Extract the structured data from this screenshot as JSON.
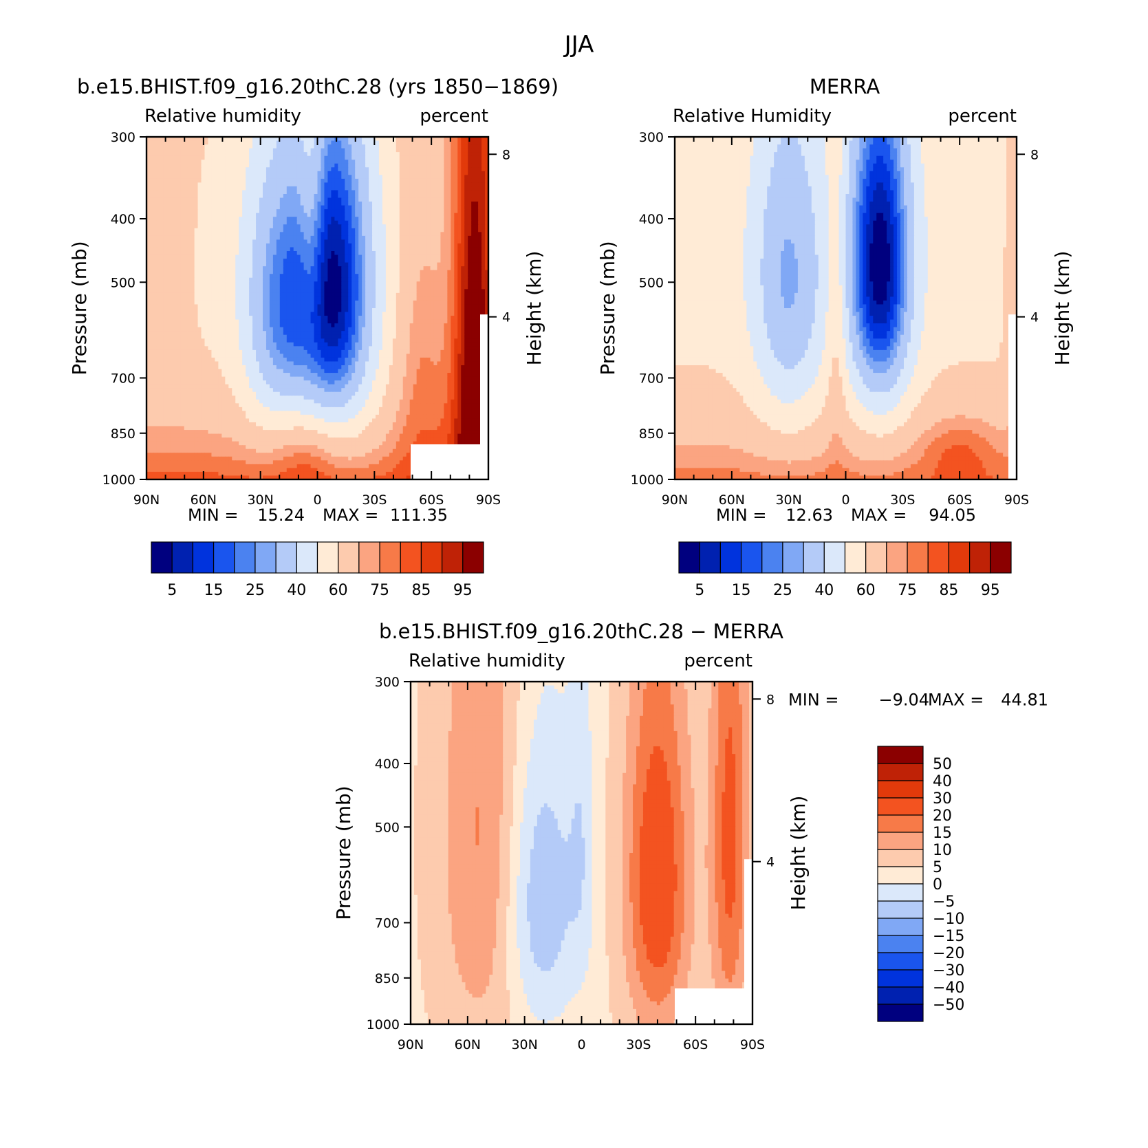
{
  "figure": {
    "title": "JJA"
  },
  "chart_data": [
    {
      "id": "model",
      "type": "heatmap",
      "title": "b.e15.BHIST.f09_g16.20thC.28 (yrs 1850−1869)",
      "left_label": "Relative humidity",
      "right_label": "percent",
      "ylabel": "Pressure (mb)",
      "y2label": "Height (km)",
      "x_ticks": [
        "90N",
        "60N",
        "30N",
        "0",
        "30S",
        "60S",
        "90S"
      ],
      "x_values": [
        90,
        60,
        30,
        0,
        -30,
        -60,
        -90
      ],
      "y_ticks": [
        "300",
        "400",
        "500",
        "700",
        "850",
        "1000"
      ],
      "y_values": [
        300,
        400,
        500,
        700,
        850,
        1000
      ],
      "y2_ticks": [
        "8",
        "4"
      ],
      "y2_values": [
        8,
        4
      ],
      "ylim": [
        300,
        1000
      ],
      "xlim": [
        90,
        -90
      ],
      "min_label": "MIN =",
      "min_value": "15.24",
      "max_label": "MAX =",
      "max_value": "111.35",
      "levels": [
        "5",
        "15",
        "25",
        "40",
        "60",
        "75",
        "85",
        "95"
      ],
      "colors": [
        "#00007f",
        "#0021b0",
        "#0033dd",
        "#1a55ee",
        "#4b82f0",
        "#80a8f5",
        "#b4cbf8",
        "#dbe8fa",
        "#ffebd6",
        "#fdcbae",
        "#fba481",
        "#f77a48",
        "#f35320",
        "#e23a0b",
        "#bf2206",
        "#8b0000"
      ],
      "source": "model"
    },
    {
      "id": "obs",
      "type": "heatmap",
      "title": "MERRA",
      "left_label": "Relative Humidity",
      "right_label": "percent",
      "ylabel": "Pressure (mb)",
      "y2label": "Height (km)",
      "x_ticks": [
        "90N",
        "60N",
        "30N",
        "0",
        "30S",
        "60S",
        "90S"
      ],
      "x_values": [
        90,
        60,
        30,
        0,
        -30,
        -60,
        -90
      ],
      "y_ticks": [
        "300",
        "400",
        "500",
        "700",
        "850",
        "1000"
      ],
      "y_values": [
        300,
        400,
        500,
        700,
        850,
        1000
      ],
      "y2_ticks": [
        "8",
        "4"
      ],
      "y2_values": [
        8,
        4
      ],
      "ylim": [
        300,
        1000
      ],
      "xlim": [
        90,
        -90
      ],
      "min_label": "MIN =",
      "min_value": "12.63",
      "max_label": "MAX =",
      "max_value": "94.05",
      "levels": [
        "5",
        "15",
        "25",
        "40",
        "60",
        "75",
        "85",
        "95"
      ],
      "colors": [
        "#00007f",
        "#0021b0",
        "#0033dd",
        "#1a55ee",
        "#4b82f0",
        "#80a8f5",
        "#b4cbf8",
        "#dbe8fa",
        "#ffebd6",
        "#fdcbae",
        "#fba481",
        "#f77a48",
        "#f35320",
        "#e23a0b",
        "#bf2206",
        "#8b0000"
      ],
      "source": "obs"
    },
    {
      "id": "diff",
      "type": "heatmap",
      "title": "b.e15.BHIST.f09_g16.20thC.28 − MERRA",
      "left_label": "Relative humidity",
      "right_label": "percent",
      "ylabel": "Pressure (mb)",
      "y2label": "Height (km)",
      "x_ticks": [
        "90N",
        "60N",
        "30N",
        "0",
        "30S",
        "60S",
        "90S"
      ],
      "x_values": [
        90,
        60,
        30,
        0,
        -30,
        -60,
        -90
      ],
      "y_ticks": [
        "300",
        "400",
        "500",
        "700",
        "850",
        "1000"
      ],
      "y_values": [
        300,
        400,
        500,
        700,
        850,
        1000
      ],
      "y2_ticks": [
        "8",
        "4"
      ],
      "y2_values": [
        8,
        4
      ],
      "ylim": [
        300,
        1000
      ],
      "xlim": [
        90,
        -90
      ],
      "min_label": "MIN =",
      "min_value": "−9.04",
      "max_label": "MAX =",
      "max_value": "44.81",
      "levels": [
        "50",
        "40",
        "30",
        "20",
        "15",
        "10",
        "5",
        "0",
        "−5",
        "−10",
        "−15",
        "−20",
        "−30",
        "−40",
        "−50"
      ],
      "colors": [
        "#00007f",
        "#0021b0",
        "#0033dd",
        "#1a55ee",
        "#4b82f0",
        "#80a8f5",
        "#b4cbf8",
        "#dbe8fa",
        "#ffebd6",
        "#fdcbae",
        "#fba481",
        "#f77a48",
        "#f35320",
        "#e23a0b",
        "#bf2206",
        "#8b0000"
      ],
      "source": "diff"
    }
  ]
}
